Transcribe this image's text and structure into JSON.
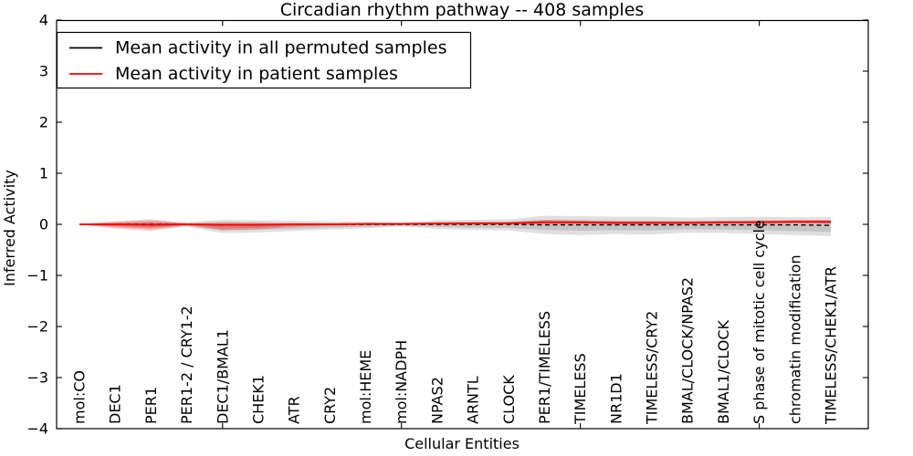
{
  "title": "Circadian rhythm pathway -- 408 samples",
  "xlabel": "Cellular Entities",
  "ylabel": "Inferred Activity",
  "legend": {
    "entries": [
      {
        "label": "Mean activity in all permuted samples",
        "color": "#000000"
      },
      {
        "label": "Mean activity in patient samples",
        "color": "#ff0000"
      }
    ]
  },
  "colors": {
    "frame": "#000000",
    "permuted_line": "#000000",
    "patient_line": "#ff0000",
    "permuted_band": "rgba(0,0,0,0.12)",
    "patient_band": "rgba(255,0,0,0.20)",
    "background": "#ffffff"
  },
  "chart_data": {
    "type": "line",
    "title": "Circadian rhythm pathway -- 408 samples",
    "xlabel": "Cellular Entities",
    "ylabel": "Inferred Activity",
    "ylim": [
      -4,
      4
    ],
    "yticks": [
      "4",
      "3",
      "2",
      "1",
      "0",
      "−1",
      "−2",
      "−3",
      "−4"
    ],
    "ytick_values": [
      4,
      3,
      2,
      1,
      0,
      -1,
      -2,
      -3,
      -4
    ],
    "xtick_values_numeric": [
      5,
      10,
      15,
      20
    ],
    "grid": false,
    "legend_position": "upper-left",
    "categories": [
      "mol:CO",
      "DEC1",
      "PER1",
      "PER1-2 / CRY1-2",
      "DEC1/BMAL1",
      "CHEK1",
      "ATR",
      "CRY2",
      "mol:HEME",
      "mol:NADPH",
      "NPAS2",
      "ARNTL",
      "CLOCK",
      "PER1/TIMELESS",
      "TIMELESS",
      "NR1D1",
      "TIMELESS/CRY2",
      "BMAL/CLOCK/NPAS2",
      "BMAL1/CLOCK",
      "S phase of mitotic cell cycle",
      "chromatin modification",
      "TIMELESS/CHEK1/ATR"
    ],
    "series": [
      {
        "name": "Mean activity in all permuted samples",
        "color": "#000000",
        "style": "dashed",
        "values": [
          0,
          0,
          0,
          0,
          -0.01,
          -0.01,
          0,
          0,
          0,
          0,
          0,
          0,
          0,
          -0.01,
          -0.01,
          -0.01,
          -0.01,
          -0.01,
          -0.01,
          -0.01,
          -0.01,
          -0.02
        ]
      },
      {
        "name": "Mean activity in patient samples",
        "color": "#ff0000",
        "style": "solid",
        "values": [
          0,
          0,
          -0.01,
          0,
          -0.01,
          -0.01,
          0,
          0,
          0.01,
          0.01,
          0.015,
          0.02,
          0.02,
          0.04,
          0.04,
          0.03,
          0.03,
          0.03,
          0.04,
          0.04,
          0.05,
          0.05
        ]
      }
    ],
    "bands": [
      {
        "name": "permuted-samples-range",
        "color": "rgba(0,0,0,0.12)",
        "upper": [
          0.01,
          0.05,
          0.08,
          0.04,
          0.09,
          0.08,
          0.07,
          0.06,
          0.05,
          0.03,
          0.08,
          0.09,
          0.1,
          0.17,
          0.16,
          0.15,
          0.15,
          0.13,
          0.14,
          0.15,
          0.14,
          0.14
        ],
        "lower": [
          -0.01,
          -0.06,
          -0.1,
          -0.05,
          -0.17,
          -0.16,
          -0.13,
          -0.1,
          -0.08,
          -0.04,
          -0.09,
          -0.11,
          -0.12,
          -0.19,
          -0.21,
          -0.19,
          -0.2,
          -0.16,
          -0.17,
          -0.19,
          -0.21,
          -0.23
        ]
      },
      {
        "name": "patient-samples-range",
        "color": "rgba(255,0,0,0.20)",
        "upper": [
          0.01,
          0.06,
          0.1,
          0.02,
          0.05,
          0.04,
          0.03,
          0.02,
          0.02,
          0.01,
          0.04,
          0.05,
          0.05,
          0.09,
          0.08,
          0.06,
          0.06,
          0.06,
          0.07,
          0.08,
          0.09,
          0.09
        ],
        "lower": [
          -0.01,
          -0.08,
          -0.13,
          -0.02,
          -0.12,
          -0.1,
          -0.05,
          -0.03,
          -0.02,
          -0.01,
          -0.01,
          -0.01,
          0,
          0,
          0,
          0,
          0,
          0,
          0.01,
          0.01,
          0.02,
          0.01
        ]
      }
    ]
  }
}
